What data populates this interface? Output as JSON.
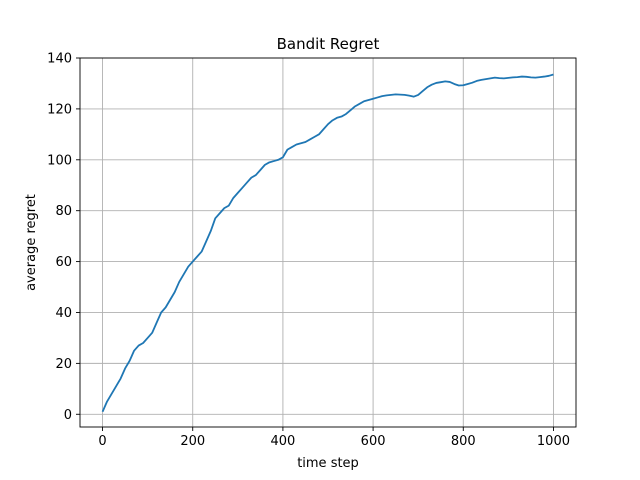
{
  "chart_data": {
    "type": "line",
    "title": "Bandit Regret",
    "xlabel": "time step",
    "ylabel": "average regret",
    "xlim": [
      -50,
      1050
    ],
    "ylim": [
      -5,
      140
    ],
    "xticks": [
      0,
      200,
      400,
      600,
      800,
      1000
    ],
    "yticks": [
      0,
      20,
      40,
      60,
      80,
      100,
      120,
      140
    ],
    "grid": true,
    "line_color": "#1f77b4",
    "series": [
      {
        "x": [
          0,
          10,
          20,
          30,
          40,
          50,
          60,
          70,
          80,
          90,
          100,
          110,
          120,
          130,
          140,
          150,
          160,
          170,
          180,
          190,
          200,
          210,
          220,
          230,
          240,
          250,
          260,
          270,
          280,
          290,
          300,
          310,
          320,
          330,
          340,
          350,
          360,
          370,
          380,
          390,
          400,
          410,
          420,
          430,
          440,
          450,
          460,
          470,
          480,
          490,
          500,
          510,
          520,
          530,
          540,
          550,
          560,
          570,
          580,
          590,
          600,
          610,
          620,
          630,
          640,
          650,
          660,
          670,
          680,
          690,
          700,
          710,
          720,
          730,
          740,
          750,
          760,
          770,
          780,
          790,
          800,
          810,
          820,
          830,
          840,
          850,
          860,
          870,
          880,
          890,
          900,
          910,
          920,
          930,
          940,
          950,
          960,
          970,
          980,
          990,
          1000
        ],
        "values": [
          1,
          5,
          8,
          11,
          14,
          18,
          21,
          25,
          27,
          28,
          30,
          32,
          36,
          40,
          42,
          45,
          48,
          52,
          55,
          58,
          60,
          62,
          64,
          68,
          72,
          77,
          79,
          81,
          82,
          85,
          87,
          89,
          91,
          93,
          94,
          96,
          98,
          99,
          99.5,
          100,
          101,
          104,
          105,
          106,
          106.5,
          107,
          108,
          109,
          110,
          112,
          114,
          115.5,
          116.5,
          117,
          118,
          119.5,
          121,
          122,
          123,
          123.5,
          124,
          124.5,
          125,
          125.3,
          125.5,
          125.7,
          125.6,
          125.5,
          125.2,
          124.8,
          125.5,
          127,
          128.5,
          129.5,
          130.2,
          130.5,
          130.8,
          130.6,
          129.8,
          129.2,
          129.3,
          129.8,
          130.3,
          131,
          131.4,
          131.7,
          132,
          132.3,
          132.1,
          132,
          132.2,
          132.4,
          132.5,
          132.7,
          132.6,
          132.4,
          132.3,
          132.5,
          132.7,
          133,
          133.5
        ]
      }
    ]
  }
}
